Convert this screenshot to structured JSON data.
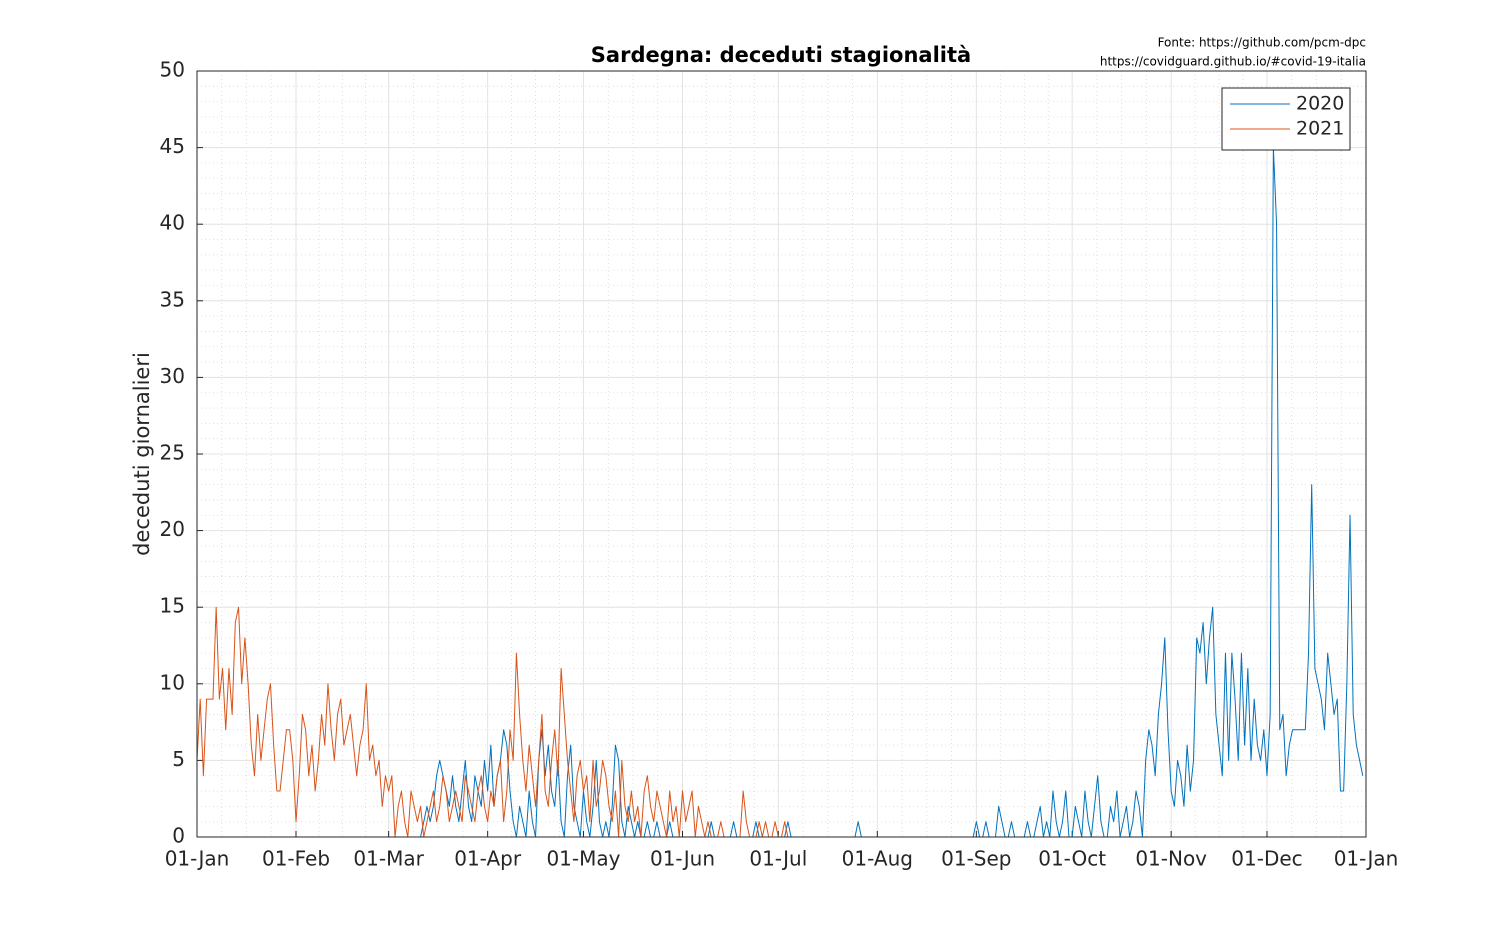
{
  "chart_data": {
    "type": "line",
    "title": "Sardegna: deceduti stagionalità",
    "source_lines": [
      "Fonte: https://github.com/pcm-dpc",
      "https://covidguard.github.io/#covid-19-italia"
    ],
    "y_label": "deceduti giornalieri",
    "xlim": [
      0,
      366
    ],
    "ylim": [
      0,
      50
    ],
    "xticks": [
      {
        "value": 0,
        "label": "01-Jan"
      },
      {
        "value": 31,
        "label": "01-Feb"
      },
      {
        "value": 60,
        "label": "01-Mar"
      },
      {
        "value": 91,
        "label": "01-Apr"
      },
      {
        "value": 121,
        "label": "01-May"
      },
      {
        "value": 152,
        "label": "01-Jun"
      },
      {
        "value": 182,
        "label": "01-Jul"
      },
      {
        "value": 213,
        "label": "01-Aug"
      },
      {
        "value": 244,
        "label": "01-Sep"
      },
      {
        "value": 274,
        "label": "01-Oct"
      },
      {
        "value": 305,
        "label": "01-Nov"
      },
      {
        "value": 335,
        "label": "01-Dec"
      },
      {
        "value": 366,
        "label": "01-Jan"
      }
    ],
    "yticks": [
      0,
      5,
      10,
      15,
      20,
      25,
      30,
      35,
      40,
      45,
      50
    ],
    "grid": true,
    "minor_grid": true,
    "legend": "northeast",
    "x": [
      0,
      1,
      2,
      3,
      4,
      5,
      6,
      7,
      8,
      9,
      10,
      11,
      12,
      13,
      14,
      15,
      16,
      17,
      18,
      19,
      20,
      21,
      22,
      23,
      24,
      25,
      26,
      27,
      28,
      29,
      30,
      31,
      32,
      33,
      34,
      35,
      36,
      37,
      38,
      39,
      40,
      41,
      42,
      43,
      44,
      45,
      46,
      47,
      48,
      49,
      50,
      51,
      52,
      53,
      54,
      55,
      56,
      57,
      58,
      59,
      60,
      61,
      62,
      63,
      64,
      65,
      66,
      67,
      68,
      69,
      70,
      71,
      72,
      73,
      74,
      75,
      76,
      77,
      78,
      79,
      80,
      81,
      82,
      83,
      84,
      85,
      86,
      87,
      88,
      89,
      90,
      91,
      92,
      93,
      94,
      95,
      96,
      97,
      98,
      99,
      100,
      101,
      102,
      103,
      104,
      105,
      106,
      107,
      108,
      109,
      110,
      111,
      112,
      113,
      114,
      115,
      116,
      117,
      118,
      119,
      120,
      121,
      122,
      123,
      124,
      125,
      126,
      127,
      128,
      129,
      130,
      131,
      132,
      133,
      134,
      135,
      136,
      137,
      138,
      139,
      140,
      141,
      142,
      143,
      144,
      145,
      146,
      147,
      148,
      149,
      150,
      151,
      152,
      153,
      154,
      155,
      156,
      157,
      158,
      159,
      160,
      161,
      162,
      163,
      164,
      165,
      166,
      167,
      168,
      169,
      170,
      171,
      172,
      173,
      174,
      175,
      176,
      177,
      178,
      179,
      180,
      181,
      182,
      183,
      184,
      185,
      186,
      187,
      188,
      189,
      190,
      191,
      192,
      193,
      194,
      195,
      196,
      197,
      198,
      199,
      200,
      201,
      202,
      203,
      204,
      205,
      206,
      207,
      208,
      209,
      210,
      211,
      212,
      213,
      214,
      215,
      216,
      217,
      218,
      219,
      220,
      221,
      222,
      223,
      224,
      225,
      226,
      227,
      228,
      229,
      230,
      231,
      232,
      233,
      234,
      235,
      236,
      237,
      238,
      239,
      240,
      241,
      242,
      243,
      244,
      245,
      246,
      247,
      248,
      249,
      250,
      251,
      252,
      253,
      254,
      255,
      256,
      257,
      258,
      259,
      260,
      261,
      262,
      263,
      264,
      265,
      266,
      267,
      268,
      269,
      270,
      271,
      272,
      273,
      274,
      275,
      276,
      277,
      278,
      279,
      280,
      281,
      282,
      283,
      284,
      285,
      286,
      287,
      288,
      289,
      290,
      291,
      292,
      293,
      294,
      295,
      296,
      297,
      298,
      299,
      300,
      301,
      302,
      303,
      304,
      305,
      306,
      307,
      308,
      309,
      310,
      311,
      312,
      313,
      314,
      315,
      316,
      317,
      318,
      319,
      320,
      321,
      322,
      323,
      324,
      325,
      326,
      327,
      328,
      329,
      330,
      331,
      332,
      333,
      334,
      335,
      336,
      337,
      338,
      339,
      340,
      341,
      342,
      343,
      344,
      345,
      346,
      347,
      348,
      349,
      350,
      351,
      352,
      353,
      354,
      355,
      356,
      357,
      358,
      359,
      360,
      361,
      362,
      363,
      364,
      365
    ],
    "series": [
      {
        "name": "2020",
        "color": "#0072bd",
        "values": [
          null,
          null,
          null,
          null,
          null,
          null,
          null,
          null,
          null,
          null,
          null,
          null,
          null,
          null,
          null,
          null,
          null,
          null,
          null,
          null,
          null,
          null,
          null,
          null,
          null,
          null,
          null,
          null,
          null,
          null,
          null,
          null,
          null,
          null,
          null,
          null,
          null,
          null,
          null,
          null,
          null,
          null,
          null,
          null,
          null,
          null,
          null,
          null,
          null,
          null,
          null,
          null,
          null,
          null,
          0,
          0,
          0,
          0,
          0,
          0,
          0,
          0,
          0,
          0,
          0,
          0,
          0,
          0,
          0,
          0,
          0,
          1,
          2,
          1,
          2,
          4,
          5,
          4,
          3,
          2,
          4,
          2,
          1,
          3,
          5,
          2,
          1,
          4,
          3,
          2,
          5,
          3,
          6,
          2,
          4,
          5,
          7,
          6,
          3,
          1,
          0,
          2,
          1,
          0,
          3,
          1,
          0,
          5,
          7,
          4,
          6,
          3,
          2,
          5,
          1,
          0,
          4,
          6,
          2,
          1,
          0,
          3,
          1,
          0,
          2,
          5,
          1,
          0,
          1,
          0,
          2,
          6,
          5,
          1,
          0,
          2,
          1,
          0,
          1,
          0,
          0,
          1,
          0,
          0,
          1,
          0,
          0,
          0,
          1,
          0,
          0,
          0,
          0,
          0,
          0,
          0,
          0,
          0,
          0,
          0,
          0,
          1,
          0,
          0,
          0,
          0,
          0,
          0,
          1,
          0,
          0,
          0,
          0,
          0,
          0,
          1,
          0,
          0,
          0,
          0,
          0,
          0,
          0,
          0,
          0,
          1,
          0,
          0,
          0,
          0,
          0,
          0,
          0,
          0,
          0,
          0,
          0,
          0,
          0,
          0,
          0,
          0,
          0,
          0,
          0,
          0,
          0,
          1,
          0,
          0,
          0,
          0,
          0,
          0,
          0,
          0,
          0,
          0,
          0,
          0,
          0,
          0,
          0,
          0,
          0,
          0,
          0,
          0,
          0,
          0,
          0,
          0,
          0,
          0,
          0,
          0,
          0,
          0,
          0,
          0,
          0,
          0,
          0,
          0,
          1,
          0,
          0,
          1,
          0,
          0,
          0,
          2,
          1,
          0,
          0,
          1,
          0,
          0,
          0,
          0,
          1,
          0,
          0,
          1,
          2,
          0,
          1,
          0,
          3,
          1,
          0,
          1,
          3,
          0,
          0,
          2,
          1,
          0,
          3,
          1,
          0,
          2,
          4,
          1,
          0,
          0,
          2,
          1,
          3,
          0,
          1,
          2,
          0,
          1,
          3,
          2,
          0,
          5,
          7,
          6,
          4,
          8,
          10,
          13,
          7,
          3,
          2,
          5,
          4,
          2,
          6,
          3,
          5,
          13,
          12,
          14,
          10,
          13,
          15,
          8,
          6,
          4,
          12,
          5,
          12,
          9,
          5,
          12,
          6,
          11,
          5,
          9,
          6,
          5,
          7,
          4,
          8,
          45,
          40,
          7,
          8,
          4,
          6,
          7,
          7,
          7,
          7,
          7,
          12,
          23,
          11,
          10,
          9,
          7,
          12,
          10,
          8,
          9,
          3,
          3,
          10,
          21,
          8,
          6,
          5,
          4
        ]
      },
      {
        "name": "2021",
        "color": "#d95319",
        "values": [
          5,
          9,
          4,
          9,
          9,
          9,
          15,
          9,
          11,
          7,
          11,
          8,
          14,
          15,
          10,
          13,
          10,
          6,
          4,
          8,
          5,
          7,
          9,
          10,
          6,
          3,
          3,
          5,
          7,
          7,
          5,
          1,
          4,
          8,
          7,
          4,
          6,
          3,
          5,
          8,
          6,
          10,
          7,
          5,
          8,
          9,
          6,
          7,
          8,
          6,
          4,
          6,
          7,
          10,
          5,
          6,
          4,
          5,
          2,
          4,
          3,
          4,
          0,
          2,
          3,
          1,
          0,
          3,
          2,
          1,
          2,
          0,
          1,
          2,
          3,
          1,
          2,
          4,
          3,
          1,
          2,
          3,
          2,
          1,
          4,
          3,
          2,
          1,
          3,
          4,
          2,
          1,
          3,
          2,
          4,
          5,
          1,
          3,
          7,
          5,
          12,
          8,
          5,
          3,
          6,
          4,
          2,
          5,
          8,
          3,
          2,
          5,
          7,
          4,
          11,
          8,
          5,
          3,
          1,
          4,
          5,
          3,
          4,
          1,
          5,
          2,
          3,
          5,
          4,
          2,
          1,
          3,
          0,
          5,
          2,
          1,
          3,
          1,
          2,
          0,
          3,
          4,
          2,
          1,
          3,
          2,
          1,
          0,
          3,
          1,
          2,
          0,
          3,
          1,
          2,
          3,
          0,
          2,
          1,
          0,
          1,
          0,
          0,
          0,
          1,
          0,
          0,
          0,
          0,
          0,
          0,
          3,
          1,
          0,
          0,
          0,
          1,
          0,
          1,
          0,
          0,
          1,
          0,
          0,
          1,
          0,
          null,
          null,
          null,
          null,
          null,
          null,
          null,
          null,
          null,
          null,
          null,
          null,
          null,
          null,
          null,
          null,
          null,
          null,
          null,
          null,
          null,
          null,
          null,
          null,
          null,
          null,
          null,
          null,
          null,
          null,
          null,
          null,
          null,
          null,
          null,
          null,
          null,
          null,
          null,
          null,
          null,
          null,
          null,
          null,
          null,
          null,
          null,
          null,
          null,
          null,
          null,
          null,
          null,
          null,
          null,
          null,
          null,
          null,
          null,
          null,
          null,
          null,
          null,
          null,
          null,
          null,
          null,
          null,
          null,
          null,
          null,
          null,
          null,
          null,
          null,
          null,
          null,
          null,
          null,
          null,
          null,
          null,
          null,
          null,
          null,
          null,
          null,
          null,
          null,
          null,
          null,
          null,
          null,
          null,
          null,
          null,
          null,
          null,
          null,
          null,
          null,
          null,
          null,
          null,
          null,
          null,
          null,
          null,
          null,
          null,
          null,
          null,
          null,
          null,
          null,
          null,
          null,
          null,
          null,
          null,
          null,
          null,
          null,
          null,
          null,
          null,
          null,
          null,
          null,
          null,
          null,
          null,
          null,
          null,
          null,
          null,
          null,
          null,
          null,
          null,
          null,
          null,
          null,
          null,
          null,
          null,
          null,
          null,
          null,
          null,
          null,
          null,
          null,
          null,
          null,
          null,
          null,
          null,
          null,
          null,
          null,
          null,
          null,
          null,
          null,
          null,
          null,
          null,
          null,
          null,
          null,
          null,
          null,
          null,
          null,
          null,
          null,
          null,
          null,
          null
        ]
      }
    ]
  }
}
